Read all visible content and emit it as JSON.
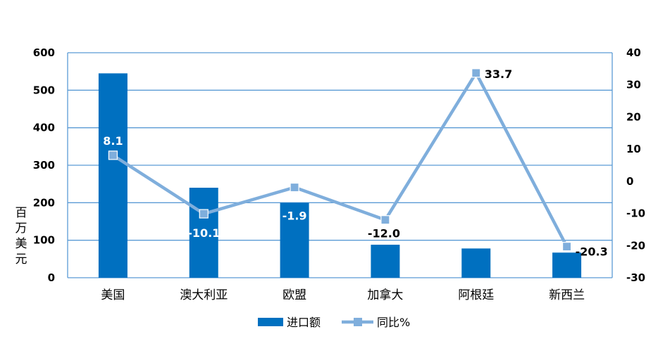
{
  "chart_data": {
    "type": "bar+line",
    "categories": [
      "美国",
      "澳大利亚",
      "欧盟",
      "加拿大",
      "阿根廷",
      "新西兰"
    ],
    "series": [
      {
        "name": "进口额",
        "type": "bar",
        "axis": "left",
        "values": [
          545,
          240,
          200,
          88,
          78,
          67
        ]
      },
      {
        "name": "同比%",
        "type": "line",
        "axis": "right",
        "values": [
          8.1,
          -10.1,
          -1.9,
          -12.0,
          33.7,
          -20.3
        ],
        "labels": [
          "8.1",
          "-10.1",
          "-1.9",
          "-12.0",
          "33.7",
          "-20.3"
        ]
      }
    ],
    "ylabel": "百万美元",
    "ylim": [
      0,
      600
    ],
    "yticks": [
      "0",
      "100",
      "200",
      "300",
      "400",
      "500",
      "600"
    ],
    "y2lim": [
      -30,
      40
    ],
    "y2ticks": [
      "-30",
      "-20",
      "-10",
      "0",
      "10",
      "20",
      "30",
      "40"
    ],
    "legend": "bottom",
    "grid": true,
    "colors": {
      "bar": "#0070C0",
      "line": "#7FAEDC",
      "marker": "#7FAEDC",
      "grid": "#5B9BD5",
      "label_light": "#ffffff",
      "label_dark": "#000000"
    }
  }
}
